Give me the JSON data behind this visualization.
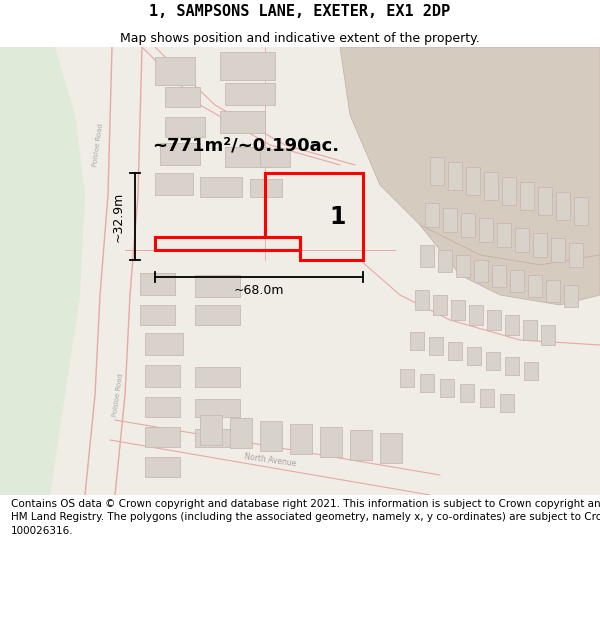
{
  "title": "1, SAMPSONS LANE, EXETER, EX1 2DP",
  "subtitle": "Map shows position and indicative extent of the property.",
  "footer_line1": "Contains OS data © Crown copyright and database right 2021. This information is subject to Crown copyright and database rights 2023 and is reproduced with the permission of",
  "footer_line2": "HM Land Registry. The polygons (including the associated geometry, namely x, y co-ordinates) are subject to Crown copyright and database rights 2023 Ordnance Survey",
  "footer_line3": "100026316.",
  "area_label": "~771m²/~0.190ac.",
  "width_label": "~68.0m",
  "height_label": "~32.9m",
  "plot_number": "1",
  "map_bg": "#f0ece6",
  "tan_area_color": "#d6cbbf",
  "green_strip_color": "#dce8d8",
  "road_line_color": "#e8a8a4",
  "road_fill_color": "#f0e8e4",
  "building_fc": "#d8d2ca",
  "building_ec": "#c8b8b4",
  "white_bg": "#ffffff",
  "dim_line_color": "#000000",
  "title_fontsize": 11,
  "subtitle_fontsize": 9,
  "footer_fontsize": 7.5,
  "area_fontsize": 13,
  "dim_fontsize": 9,
  "plot_num_fontsize": 17
}
